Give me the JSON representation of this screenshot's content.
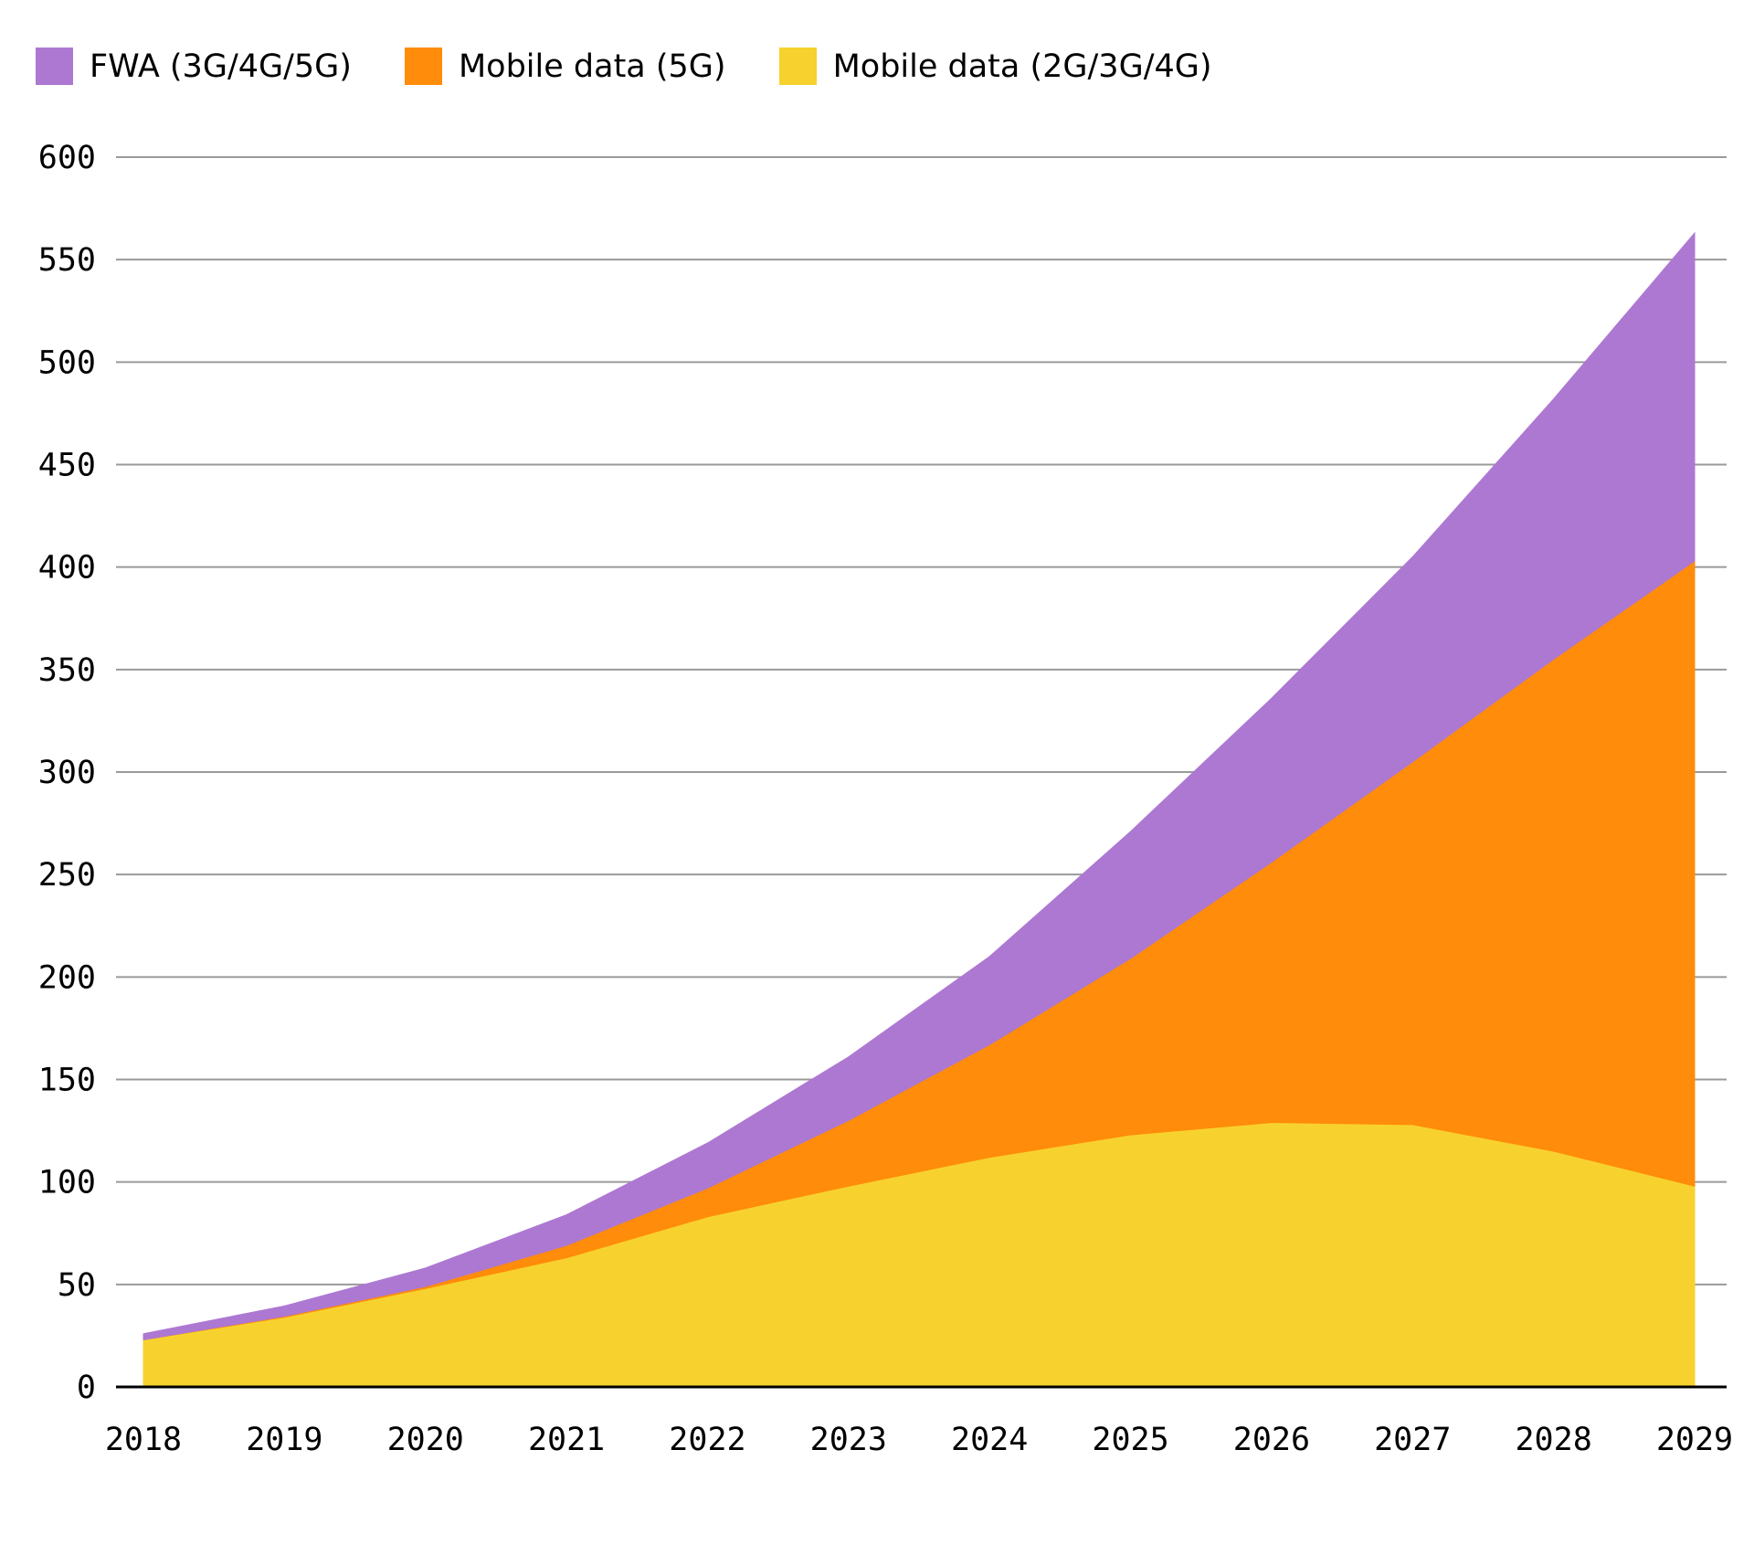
{
  "legend": [
    {
      "label": "FWA (3G/4G/5G)",
      "color": "#ad78d2"
    },
    {
      "label": "Mobile data (5G)",
      "color": "#ff8c0a"
    },
    {
      "label": "Mobile data (2G/3G/4G)",
      "color": "#f7d22e"
    }
  ],
  "chart_data": {
    "type": "area",
    "stacked": true,
    "x": [
      "2018",
      "2019",
      "2020",
      "2021",
      "2022",
      "2023",
      "2024",
      "2025",
      "2026",
      "2027",
      "2028",
      "2029"
    ],
    "series": [
      {
        "name": "Mobile data (2G/3G/4G)",
        "color": "#f7d22e",
        "values": [
          23,
          34,
          48,
          63,
          83,
          98,
          112,
          123,
          129,
          128,
          115,
          98
        ]
      },
      {
        "name": "Mobile data (5G)",
        "color": "#ff8c0a",
        "values": [
          0,
          0.5,
          1,
          6,
          14,
          32,
          55,
          86,
          127,
          177,
          240,
          305
        ]
      },
      {
        "name": "FWA (3G/4G/5G)",
        "color": "#ad78d2",
        "values": [
          3,
          5,
          9,
          15,
          22,
          31,
          43,
          62,
          80,
          100,
          127,
          160
        ]
      }
    ],
    "ylim": [
      0,
      600
    ],
    "yticks": [
      0,
      50,
      100,
      150,
      200,
      250,
      300,
      350,
      400,
      450,
      500,
      550,
      600
    ],
    "xlabel": "",
    "ylabel": "",
    "grid": true,
    "legend_position": "top-left"
  }
}
